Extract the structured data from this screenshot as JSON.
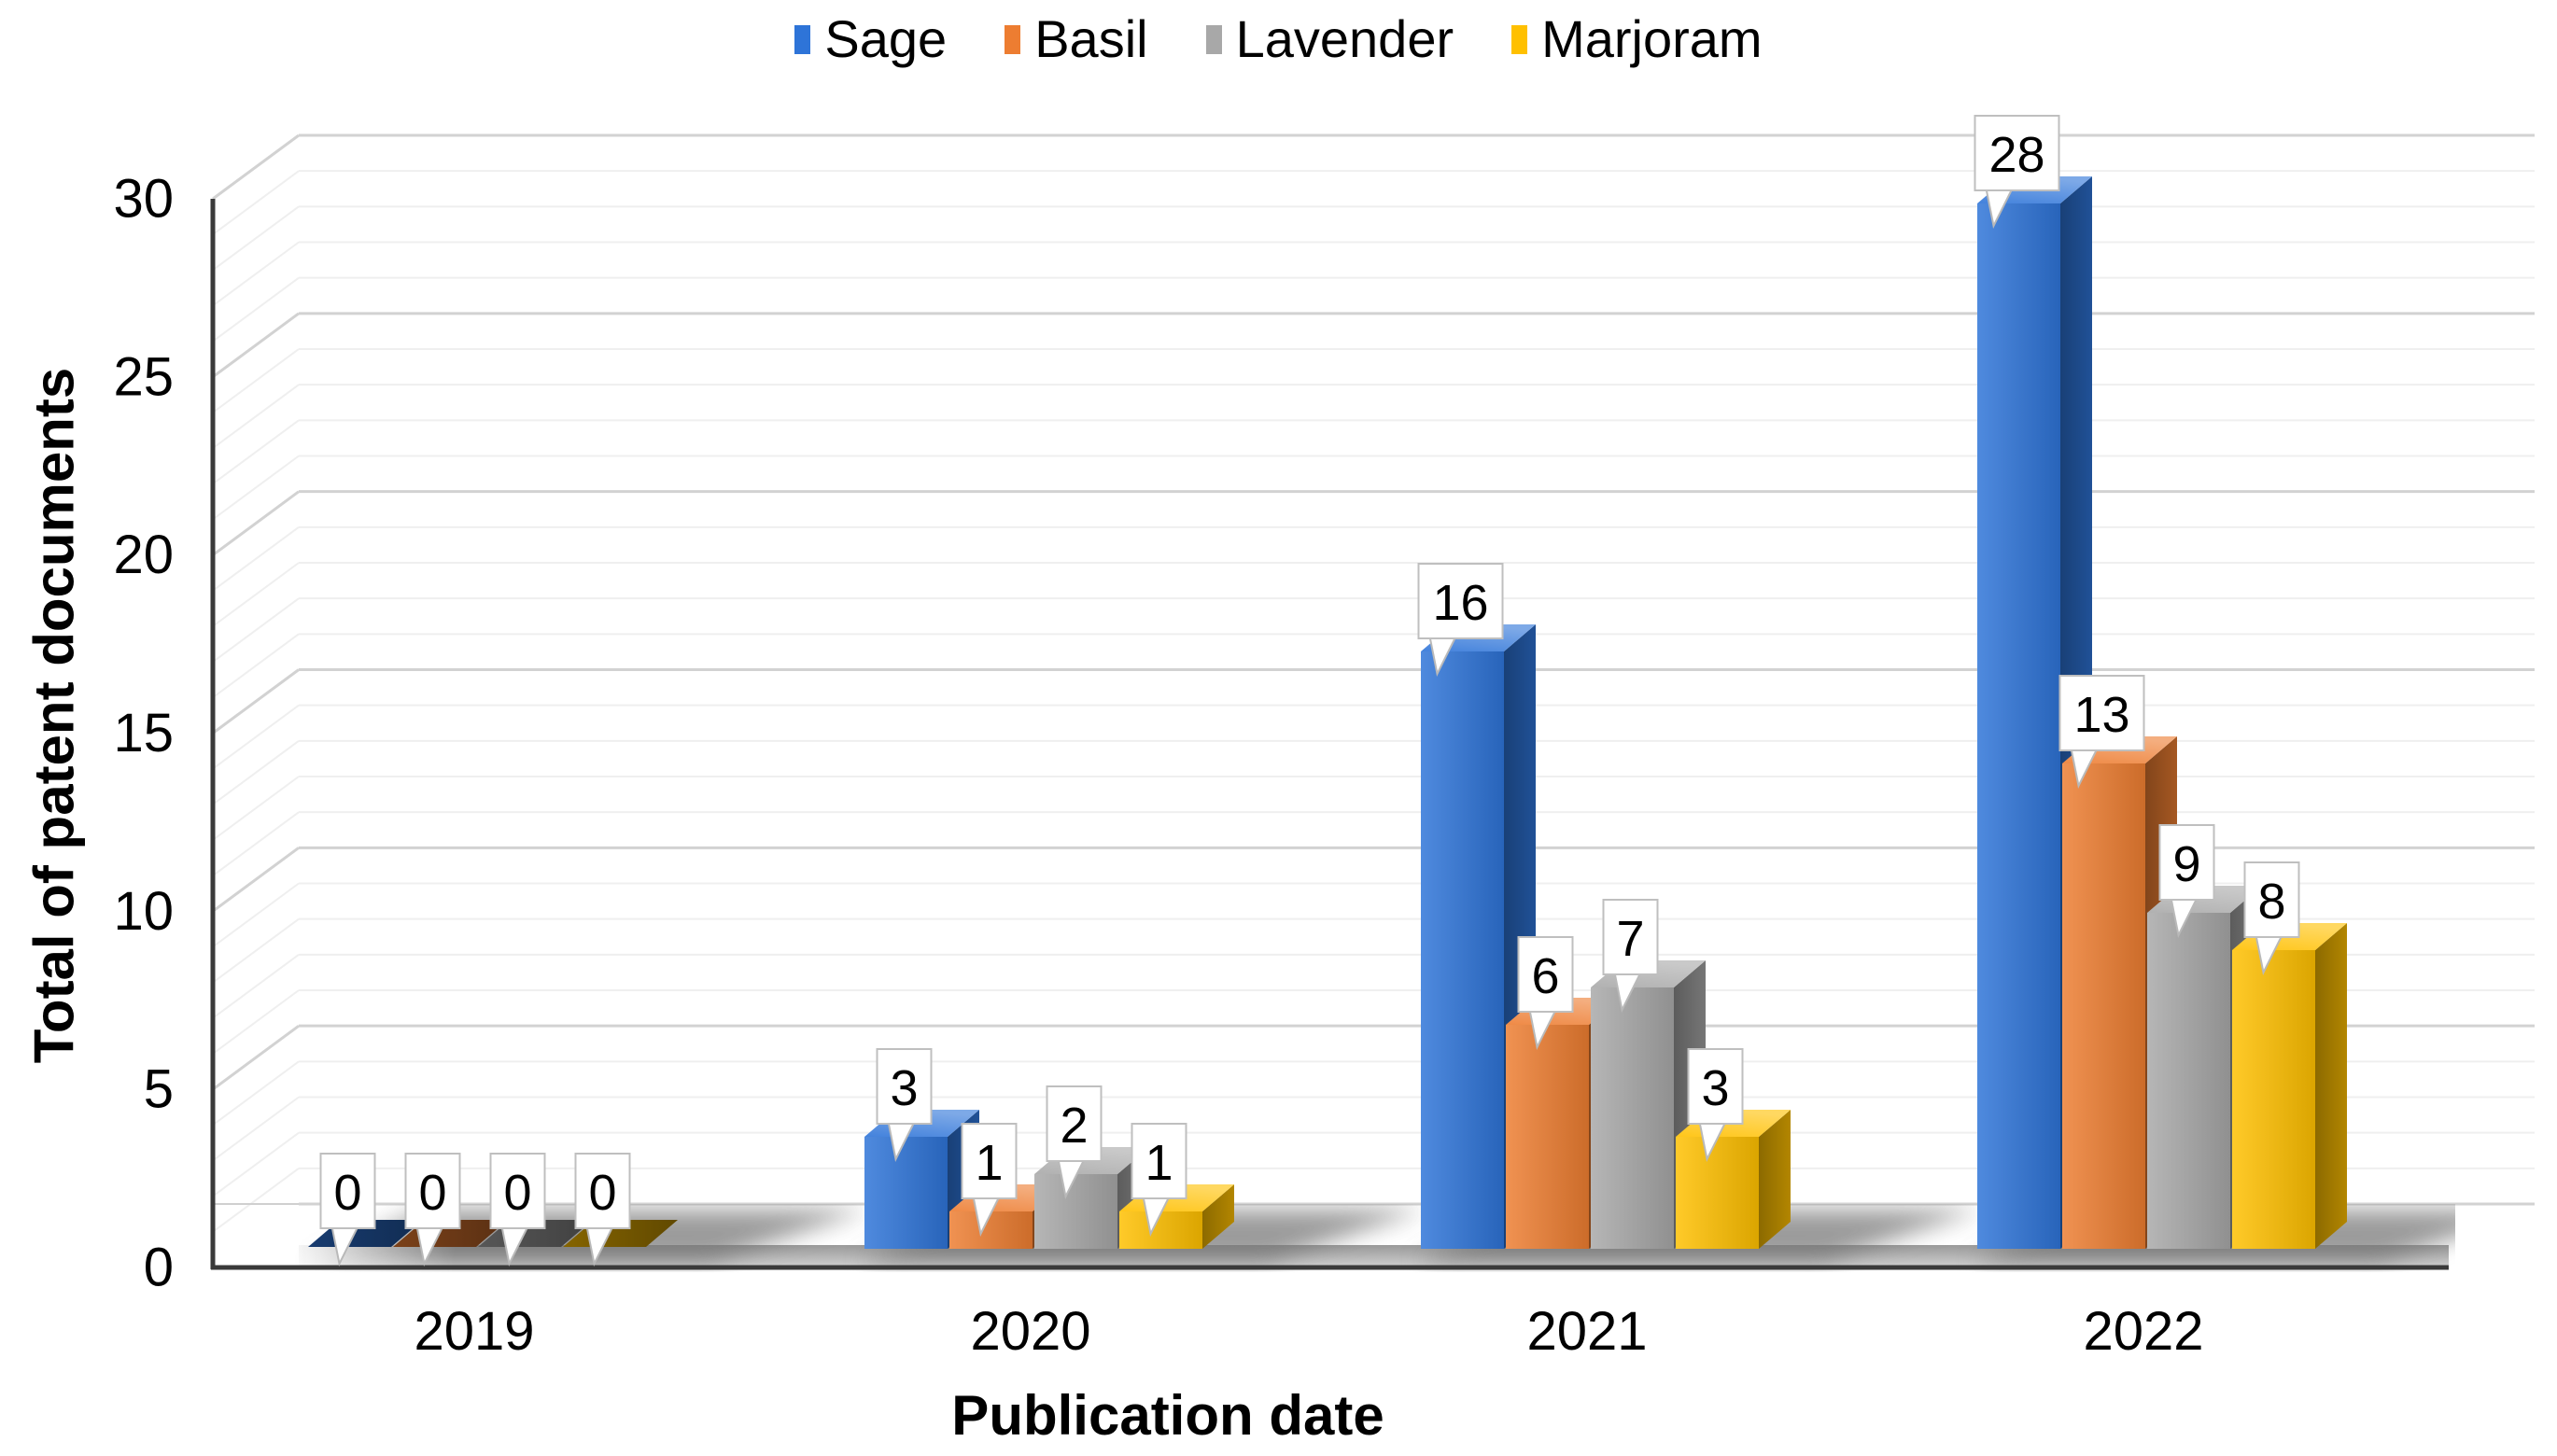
{
  "chart_data": {
    "type": "bar",
    "style": "3d-clustered-column",
    "categories": [
      "2019",
      "2020",
      "2021",
      "2022"
    ],
    "series": [
      {
        "name": "Sage",
        "color": "#2E74D8",
        "values": [
          0,
          3,
          16,
          28
        ]
      },
      {
        "name": "Basil",
        "color": "#ED7D31",
        "values": [
          0,
          1,
          6,
          13
        ]
      },
      {
        "name": "Lavender",
        "color": "#A8A8A8",
        "values": [
          0,
          2,
          7,
          9
        ]
      },
      {
        "name": "Marjoram",
        "color": "#FFC000",
        "values": [
          0,
          1,
          3,
          8
        ]
      }
    ],
    "xlabel": "Publication date",
    "ylabel": "Total of patent documents",
    "ylim": [
      0,
      30
    ],
    "ytick_step": 5,
    "yticks": [
      "0",
      "5",
      "10",
      "15",
      "20",
      "25",
      "30"
    ],
    "minor_grid_step": 1,
    "grid": "on",
    "legend_position": "top",
    "data_labels": "callout-boxes"
  }
}
